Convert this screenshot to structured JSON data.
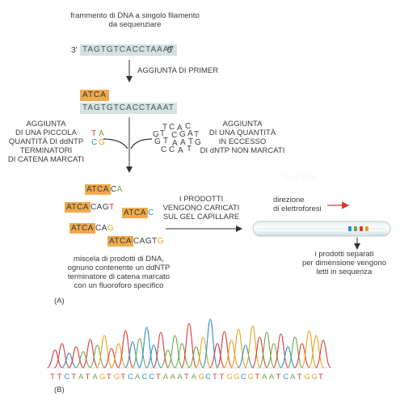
{
  "top": {
    "fragment_title_line1": "frammento di DNA a singolo filamento",
    "fragment_title_line2": "da sequenziare",
    "end3": "3'",
    "end5": "5'",
    "template_seq": "TAGTGTCACCTAAAT",
    "primer_step": "AGGIUNTA DI PRIMER",
    "primer_seq": "ATCA"
  },
  "left_note": {
    "line1": "AGGIUNTA",
    "line2": "DI UNA PICCOLA",
    "line3": "QUANTITÀ DI ddNTP",
    "line4": "TERMINATORI",
    "line5": "DI CATENA MARCATI",
    "ddntp": [
      "T",
      "A",
      "C",
      "G"
    ]
  },
  "right_note": {
    "line1": "AGGIUNTA",
    "line2": "DI UNA QUANTITÀ",
    "line3": "IN ECCESSO",
    "line4": "DI dNTP NON MARCATI",
    "dntp_cloud": [
      "T",
      "C",
      "A",
      "C",
      "G",
      "T",
      "C",
      "G",
      "A",
      "T",
      "G",
      "T",
      "A",
      "A",
      "T",
      "G",
      "C",
      "C",
      "A",
      "T"
    ]
  },
  "products": {
    "fragments": [
      {
        "primer": "ATCA",
        "rest": "C",
        "last": "A",
        "color": "#6fa64b"
      },
      {
        "primer": "ATCA",
        "rest": "CAG",
        "last": "T",
        "color": "#d93a3a"
      },
      {
        "primer": "ATCA",
        "rest": "",
        "last": "C",
        "color": "#2a8fc8"
      },
      {
        "primer": "ATCA",
        "rest": "CA",
        "last": "G",
        "color": "#e8a317"
      },
      {
        "primer": "ATCA",
        "rest": "CAGT",
        "last": "G",
        "color": "#e8a317"
      }
    ],
    "caption_line1": "miscela di prodotti di DNA,",
    "caption_line2": "ognuno contenente un ddNTP",
    "caption_line3": "terminatore di catena marcato",
    "caption_line4": "con un fluoroforo specifico",
    "label_a": "(A)"
  },
  "gel": {
    "loaded_line1": "I PRODOTTI",
    "loaded_line2": "VENGONO CARICATI",
    "loaded_line3": "SUL GEL CAPILLARE",
    "direction_line1": "direzione",
    "direction_line2": "di elettroforesi",
    "result_line1": "i prodotti separati",
    "result_line2": "per dimensione vengono",
    "result_line3": "letti in sequenza",
    "band_colors": [
      "#2a8fc8",
      "#6fa64b",
      "#d93a3a",
      "#e8a317"
    ]
  },
  "chromatogram": {
    "sequence": "TTCTATAGTGTCACCTAAATAGCTTGGCGTAATCATGGT",
    "label_b": "(B)",
    "colors": {
      "A": "#6fa64b",
      "C": "#2a8fc8",
      "G": "#e8a317",
      "T": "#d93a3a"
    }
  }
}
